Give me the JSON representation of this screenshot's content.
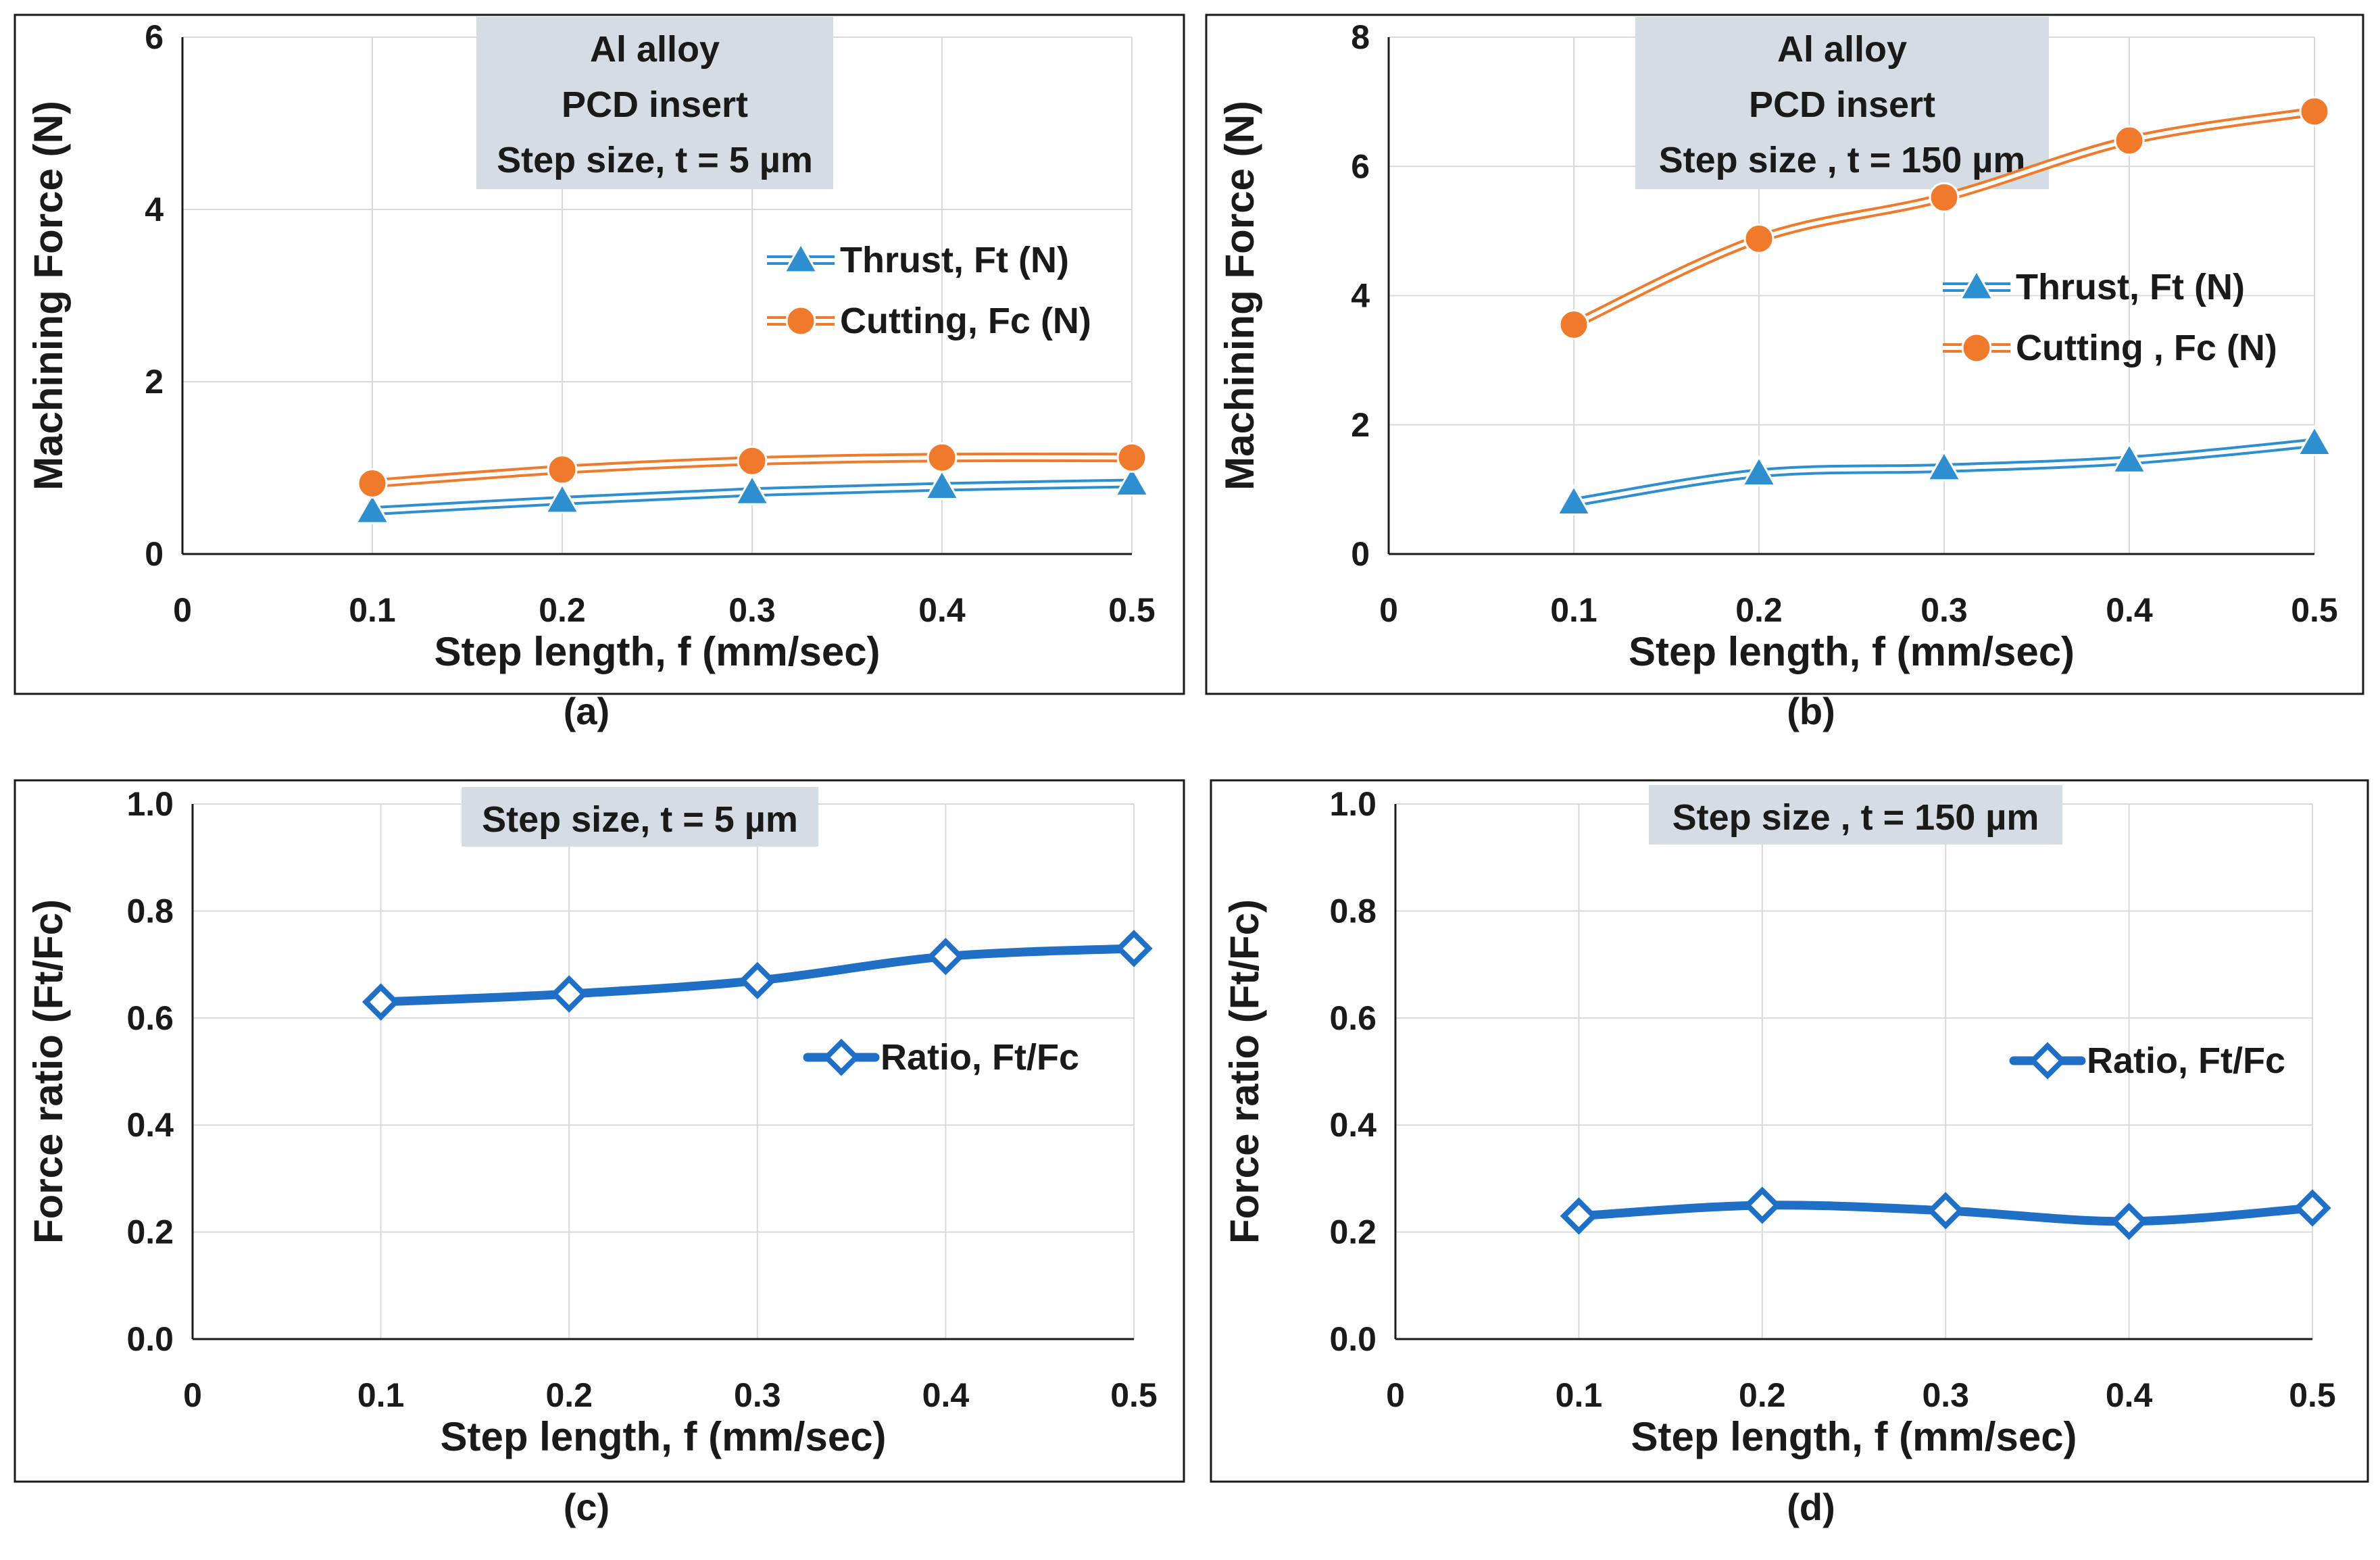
{
  "chart_data": [
    {
      "type": "line",
      "panel": "(a)",
      "annotation": [
        "Al alloy",
        "PCD insert",
        "Step size, t = 5 µm"
      ],
      "xlabel": "Step length, f (mm/sec)",
      "ylabel": "Machining Force (N)",
      "xlim": [
        0,
        0.5
      ],
      "ylim": [
        0,
        6
      ],
      "xticks": [
        "0",
        "0.1",
        "0.2",
        "0.3",
        "0.4",
        "0.5"
      ],
      "yticks": [
        "0",
        "2",
        "4",
        "6"
      ],
      "legend_position": "right",
      "series": [
        {
          "name": "Thrust, Ft (N)",
          "color": "#2e8fd0",
          "marker": "triangle",
          "x": [
            0.1,
            0.2,
            0.3,
            0.4,
            0.5
          ],
          "values": [
            0.5,
            0.62,
            0.72,
            0.78,
            0.82
          ]
        },
        {
          "name": "Cutting, Fc (N)",
          "color": "#f07a2c",
          "marker": "circle",
          "x": [
            0.1,
            0.2,
            0.3,
            0.4,
            0.5
          ],
          "values": [
            0.82,
            0.98,
            1.08,
            1.12,
            1.12
          ]
        }
      ]
    },
    {
      "type": "line",
      "panel": "(b)",
      "annotation": [
        "Al alloy",
        "PCD insert",
        "Step size , t = 150 µm"
      ],
      "xlabel": "Step length, f (mm/sec)",
      "ylabel": "Machining Force (N)",
      "xlim": [
        0,
        0.5
      ],
      "ylim": [
        0,
        8
      ],
      "xticks": [
        "0",
        "0.1",
        "0.2",
        "0.3",
        "0.4",
        "0.5"
      ],
      "yticks": [
        "0",
        "2",
        "4",
        "6",
        "8"
      ],
      "legend_position": "right",
      "series": [
        {
          "name": "Thrust, Ft (N)",
          "color": "#2e8fd0",
          "marker": "triangle",
          "x": [
            0.1,
            0.2,
            0.3,
            0.4,
            0.5
          ],
          "values": [
            0.8,
            1.25,
            1.33,
            1.45,
            1.72
          ]
        },
        {
          "name": "Cutting , Fc (N)",
          "color": "#f07a2c",
          "marker": "circle",
          "x": [
            0.1,
            0.2,
            0.3,
            0.4,
            0.5
          ],
          "values": [
            3.55,
            4.88,
            5.52,
            6.4,
            6.85
          ]
        }
      ]
    },
    {
      "type": "line",
      "panel": "(c)",
      "annotation": [
        "Step size, t = 5 µm"
      ],
      "xlabel": "Step length, f (mm/sec)",
      "ylabel": "Force ratio (Ft/Fc)",
      "xlim": [
        0,
        0.5
      ],
      "ylim": [
        0,
        1
      ],
      "xticks": [
        "0",
        "0.1",
        "0.2",
        "0.3",
        "0.4",
        "0.5"
      ],
      "yticks": [
        "0.0",
        "0.2",
        "0.4",
        "0.6",
        "0.8",
        "1.0"
      ],
      "legend_position": "right",
      "series": [
        {
          "name": "Ratio, Ft/Fc",
          "color": "#1f6fc6",
          "marker": "diamond",
          "x": [
            0.1,
            0.2,
            0.3,
            0.4,
            0.5
          ],
          "values": [
            0.63,
            0.645,
            0.67,
            0.715,
            0.73
          ]
        }
      ]
    },
    {
      "type": "line",
      "panel": "(d)",
      "annotation": [
        "Step size , t = 150 µm"
      ],
      "xlabel": "Step length, f (mm/sec)",
      "ylabel": "Force ratio (Ft/Fc)",
      "xlim": [
        0,
        0.5
      ],
      "ylim": [
        0,
        1
      ],
      "xticks": [
        "0",
        "0.1",
        "0.2",
        "0.3",
        "0.4",
        "0.5"
      ],
      "yticks": [
        "0.0",
        "0.2",
        "0.4",
        "0.6",
        "0.8",
        "1.0"
      ],
      "legend_position": "right",
      "series": [
        {
          "name": "Ratio, Ft/Fc",
          "color": "#1f6fc6",
          "marker": "diamond",
          "x": [
            0.1,
            0.2,
            0.3,
            0.4,
            0.5
          ],
          "values": [
            0.23,
            0.25,
            0.24,
            0.22,
            0.245
          ]
        }
      ]
    }
  ]
}
